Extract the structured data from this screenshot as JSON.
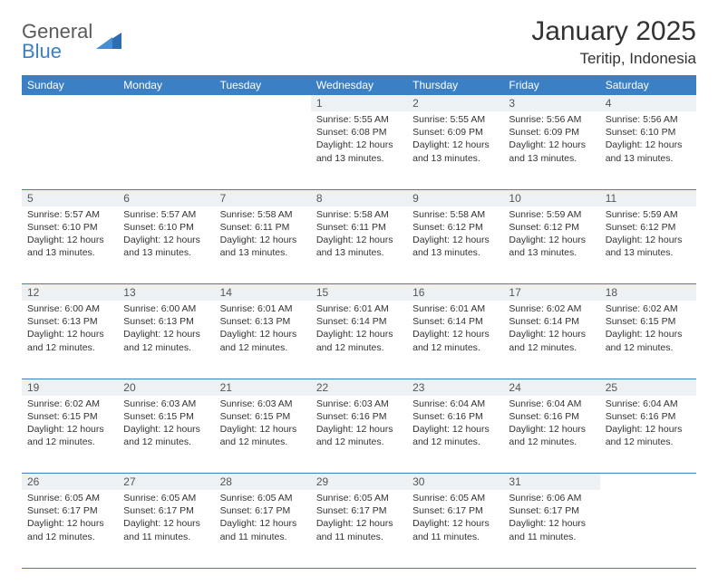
{
  "logo": {
    "line1": "General",
    "line2": "Blue"
  },
  "title": "January 2025",
  "location": "Teritip, Indonesia",
  "colors": {
    "header_bg": "#3b7fc4",
    "header_fg": "#ffffff",
    "daynum_bg": "#eef1f4",
    "row_border": "#3b7fc4",
    "page_bg": "#ffffff",
    "text": "#333333",
    "logo_gray": "#5a5a5a",
    "logo_blue": "#3b7fc4"
  },
  "typography": {
    "title_fontsize": 30,
    "location_fontsize": 17,
    "dayheader_fontsize": 12,
    "daynum_fontsize": 12,
    "cell_fontsize": 10.5,
    "font_family": "Arial"
  },
  "calendar": {
    "type": "table",
    "columns": [
      "Sunday",
      "Monday",
      "Tuesday",
      "Wednesday",
      "Thursday",
      "Friday",
      "Saturday"
    ],
    "weeks": [
      [
        null,
        null,
        null,
        {
          "day": "1",
          "sunrise": "5:55 AM",
          "sunset": "6:08 PM",
          "daylight": "12 hours and 13 minutes."
        },
        {
          "day": "2",
          "sunrise": "5:55 AM",
          "sunset": "6:09 PM",
          "daylight": "12 hours and 13 minutes."
        },
        {
          "day": "3",
          "sunrise": "5:56 AM",
          "sunset": "6:09 PM",
          "daylight": "12 hours and 13 minutes."
        },
        {
          "day": "4",
          "sunrise": "5:56 AM",
          "sunset": "6:10 PM",
          "daylight": "12 hours and 13 minutes."
        }
      ],
      [
        {
          "day": "5",
          "sunrise": "5:57 AM",
          "sunset": "6:10 PM",
          "daylight": "12 hours and 13 minutes."
        },
        {
          "day": "6",
          "sunrise": "5:57 AM",
          "sunset": "6:10 PM",
          "daylight": "12 hours and 13 minutes."
        },
        {
          "day": "7",
          "sunrise": "5:58 AM",
          "sunset": "6:11 PM",
          "daylight": "12 hours and 13 minutes."
        },
        {
          "day": "8",
          "sunrise": "5:58 AM",
          "sunset": "6:11 PM",
          "daylight": "12 hours and 13 minutes."
        },
        {
          "day": "9",
          "sunrise": "5:58 AM",
          "sunset": "6:12 PM",
          "daylight": "12 hours and 13 minutes."
        },
        {
          "day": "10",
          "sunrise": "5:59 AM",
          "sunset": "6:12 PM",
          "daylight": "12 hours and 13 minutes."
        },
        {
          "day": "11",
          "sunrise": "5:59 AM",
          "sunset": "6:12 PM",
          "daylight": "12 hours and 13 minutes."
        }
      ],
      [
        {
          "day": "12",
          "sunrise": "6:00 AM",
          "sunset": "6:13 PM",
          "daylight": "12 hours and 12 minutes."
        },
        {
          "day": "13",
          "sunrise": "6:00 AM",
          "sunset": "6:13 PM",
          "daylight": "12 hours and 12 minutes."
        },
        {
          "day": "14",
          "sunrise": "6:01 AM",
          "sunset": "6:13 PM",
          "daylight": "12 hours and 12 minutes."
        },
        {
          "day": "15",
          "sunrise": "6:01 AM",
          "sunset": "6:14 PM",
          "daylight": "12 hours and 12 minutes."
        },
        {
          "day": "16",
          "sunrise": "6:01 AM",
          "sunset": "6:14 PM",
          "daylight": "12 hours and 12 minutes."
        },
        {
          "day": "17",
          "sunrise": "6:02 AM",
          "sunset": "6:14 PM",
          "daylight": "12 hours and 12 minutes."
        },
        {
          "day": "18",
          "sunrise": "6:02 AM",
          "sunset": "6:15 PM",
          "daylight": "12 hours and 12 minutes."
        }
      ],
      [
        {
          "day": "19",
          "sunrise": "6:02 AM",
          "sunset": "6:15 PM",
          "daylight": "12 hours and 12 minutes."
        },
        {
          "day": "20",
          "sunrise": "6:03 AM",
          "sunset": "6:15 PM",
          "daylight": "12 hours and 12 minutes."
        },
        {
          "day": "21",
          "sunrise": "6:03 AM",
          "sunset": "6:15 PM",
          "daylight": "12 hours and 12 minutes."
        },
        {
          "day": "22",
          "sunrise": "6:03 AM",
          "sunset": "6:16 PM",
          "daylight": "12 hours and 12 minutes."
        },
        {
          "day": "23",
          "sunrise": "6:04 AM",
          "sunset": "6:16 PM",
          "daylight": "12 hours and 12 minutes."
        },
        {
          "day": "24",
          "sunrise": "6:04 AM",
          "sunset": "6:16 PM",
          "daylight": "12 hours and 12 minutes."
        },
        {
          "day": "25",
          "sunrise": "6:04 AM",
          "sunset": "6:16 PM",
          "daylight": "12 hours and 12 minutes."
        }
      ],
      [
        {
          "day": "26",
          "sunrise": "6:05 AM",
          "sunset": "6:17 PM",
          "daylight": "12 hours and 12 minutes."
        },
        {
          "day": "27",
          "sunrise": "6:05 AM",
          "sunset": "6:17 PM",
          "daylight": "12 hours and 11 minutes."
        },
        {
          "day": "28",
          "sunrise": "6:05 AM",
          "sunset": "6:17 PM",
          "daylight": "12 hours and 11 minutes."
        },
        {
          "day": "29",
          "sunrise": "6:05 AM",
          "sunset": "6:17 PM",
          "daylight": "12 hours and 11 minutes."
        },
        {
          "day": "30",
          "sunrise": "6:05 AM",
          "sunset": "6:17 PM",
          "daylight": "12 hours and 11 minutes."
        },
        {
          "day": "31",
          "sunrise": "6:06 AM",
          "sunset": "6:17 PM",
          "daylight": "12 hours and 11 minutes."
        },
        null
      ]
    ]
  },
  "labels": {
    "sunrise": "Sunrise:",
    "sunset": "Sunset:",
    "daylight": "Daylight:"
  }
}
